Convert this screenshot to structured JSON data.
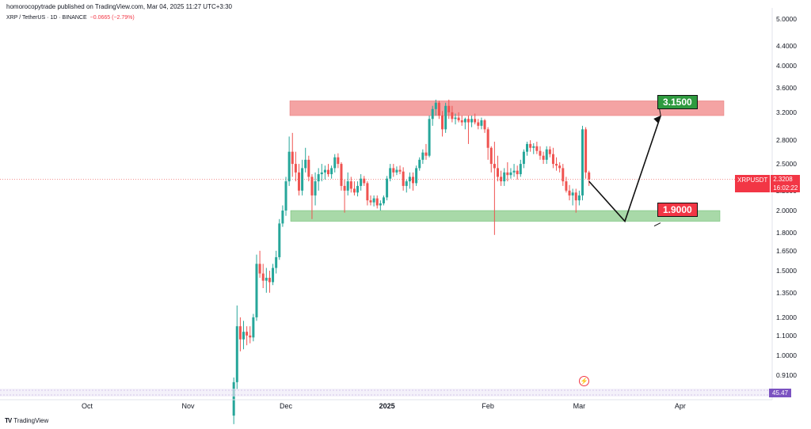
{
  "header": {
    "publisher_line": "homorocopytrade published on TradingView.com, Mar 04, 2025 11:27 UTC+3:30",
    "symbol_line": "XRP / TetherUS · 1D · BINANCE",
    "change": "−0.0665 (−2.79%)"
  },
  "price_tag": {
    "symbol": "XRPUSDT",
    "price": "2.3208",
    "countdown": "16:02:22"
  },
  "targets": {
    "high": "3.1500",
    "low": "1.9000"
  },
  "volume_value": "45.47",
  "branding": "TradingView",
  "icons": {
    "brand": "tradingview-logo-icon",
    "event": "lightning-icon"
  },
  "colors": {
    "up": "#26a69a",
    "down": "#ef5350",
    "resistance": "#f4a3a3",
    "support": "#a8d9a8"
  },
  "chart_data": {
    "type": "candlestick",
    "scale": "log",
    "y_ticks": [
      "5.0000",
      "4.4000",
      "4.0000",
      "3.6000",
      "3.2000",
      "2.8000",
      "2.5000",
      "2.2000",
      "2.0000",
      "1.8000",
      "1.6500",
      "1.5000",
      "1.3500",
      "1.2000",
      "1.1000",
      "1.0000",
      "0.9100"
    ],
    "x_ticks": [
      {
        "label": "Oct",
        "date": "2024-10-01"
      },
      {
        "label": "Nov",
        "date": "2024-11-01"
      },
      {
        "label": "Dec",
        "date": "2024-12-01"
      },
      {
        "label": "2025",
        "date": "2025-01-01"
      },
      {
        "label": "Feb",
        "date": "2025-02-01"
      },
      {
        "label": "Mar",
        "date": "2025-03-01"
      },
      {
        "label": "Apr",
        "date": "2025-04-01"
      }
    ],
    "resistance_zone": [
      3.15,
      3.38
    ],
    "support_zone": [
      1.9,
      2.0
    ],
    "projection": [
      {
        "date": "2025-03-04",
        "price": 2.3
      },
      {
        "date": "2025-03-15",
        "price": 1.9
      },
      {
        "date": "2025-03-26",
        "price": 3.15
      }
    ],
    "candles": [
      [
        "2024-11-15",
        0.75,
        0.9,
        0.72,
        0.88
      ],
      [
        "2024-11-16",
        0.88,
        1.27,
        0.85,
        1.15
      ],
      [
        "2024-11-17",
        1.15,
        1.2,
        1.02,
        1.08
      ],
      [
        "2024-11-18",
        1.08,
        1.18,
        1.03,
        1.12
      ],
      [
        "2024-11-19",
        1.12,
        1.15,
        1.05,
        1.1
      ],
      [
        "2024-11-20",
        1.1,
        1.15,
        1.06,
        1.09
      ],
      [
        "2024-11-21",
        1.09,
        1.22,
        1.07,
        1.2
      ],
      [
        "2024-11-22",
        1.2,
        1.62,
        1.18,
        1.55
      ],
      [
        "2024-11-23",
        1.55,
        1.65,
        1.45,
        1.48
      ],
      [
        "2024-11-24",
        1.48,
        1.55,
        1.38,
        1.43
      ],
      [
        "2024-11-25",
        1.43,
        1.52,
        1.35,
        1.45
      ],
      [
        "2024-11-26",
        1.45,
        1.5,
        1.35,
        1.42
      ],
      [
        "2024-11-27",
        1.42,
        1.55,
        1.4,
        1.52
      ],
      [
        "2024-11-28",
        1.52,
        1.65,
        1.48,
        1.6
      ],
      [
        "2024-11-29",
        1.6,
        1.92,
        1.58,
        1.88
      ],
      [
        "2024-11-30",
        1.88,
        2.05,
        1.85,
        2.0
      ],
      [
        "2024-12-01",
        2.0,
        2.35,
        1.95,
        2.3
      ],
      [
        "2024-12-02",
        2.3,
        2.85,
        2.25,
        2.65
      ],
      [
        "2024-12-03",
        2.65,
        2.9,
        2.35,
        2.5
      ],
      [
        "2024-12-04",
        2.5,
        2.65,
        2.3,
        2.4
      ],
      [
        "2024-12-05",
        2.4,
        2.5,
        2.15,
        2.2
      ],
      [
        "2024-12-06",
        2.2,
        2.55,
        2.15,
        2.45
      ],
      [
        "2024-12-07",
        2.45,
        2.7,
        2.4,
        2.55
      ],
      [
        "2024-12-08",
        2.55,
        2.6,
        2.3,
        2.35
      ],
      [
        "2024-12-09",
        2.35,
        2.38,
        1.92,
        2.15
      ],
      [
        "2024-12-10",
        2.15,
        2.4,
        2.05,
        2.3
      ],
      [
        "2024-12-11",
        2.3,
        2.45,
        2.2,
        2.38
      ],
      [
        "2024-12-12",
        2.38,
        2.5,
        2.3,
        2.4
      ],
      [
        "2024-12-13",
        2.4,
        2.48,
        2.32,
        2.43
      ],
      [
        "2024-12-14",
        2.43,
        2.5,
        2.35,
        2.38
      ],
      [
        "2024-12-15",
        2.38,
        2.48,
        2.33,
        2.45
      ],
      [
        "2024-12-16",
        2.45,
        2.62,
        2.4,
        2.58
      ],
      [
        "2024-12-17",
        2.58,
        2.63,
        2.45,
        2.5
      ],
      [
        "2024-12-18",
        2.5,
        2.52,
        2.2,
        2.25
      ],
      [
        "2024-12-19",
        2.25,
        2.32,
        1.98,
        2.2
      ],
      [
        "2024-12-20",
        2.2,
        2.4,
        2.15,
        2.3
      ],
      [
        "2024-12-21",
        2.3,
        2.35,
        2.18,
        2.22
      ],
      [
        "2024-12-22",
        2.22,
        2.3,
        2.15,
        2.18
      ],
      [
        "2024-12-23",
        2.18,
        2.3,
        2.14,
        2.25
      ],
      [
        "2024-12-24",
        2.25,
        2.38,
        2.2,
        2.33
      ],
      [
        "2024-12-25",
        2.33,
        2.36,
        2.25,
        2.28
      ],
      [
        "2024-12-26",
        2.28,
        2.3,
        2.05,
        2.1
      ],
      [
        "2024-12-27",
        2.1,
        2.15,
        2.05,
        2.08
      ],
      [
        "2024-12-28",
        2.08,
        2.15,
        2.04,
        2.12
      ],
      [
        "2024-12-29",
        2.12,
        2.15,
        2.02,
        2.05
      ],
      [
        "2024-12-30",
        2.05,
        2.1,
        2.0,
        2.07
      ],
      [
        "2024-12-31",
        2.07,
        2.15,
        2.05,
        2.13
      ],
      [
        "2025-01-01",
        2.13,
        2.36,
        2.1,
        2.33
      ],
      [
        "2025-01-02",
        2.33,
        2.5,
        2.3,
        2.45
      ],
      [
        "2025-01-03",
        2.45,
        2.5,
        2.35,
        2.4
      ],
      [
        "2025-01-04",
        2.4,
        2.47,
        2.37,
        2.43
      ],
      [
        "2025-01-05",
        2.43,
        2.48,
        2.38,
        2.41
      ],
      [
        "2025-01-06",
        2.41,
        2.46,
        2.2,
        2.25
      ],
      [
        "2025-01-07",
        2.25,
        2.32,
        2.18,
        2.3
      ],
      [
        "2025-01-08",
        2.3,
        2.4,
        2.22,
        2.35
      ],
      [
        "2025-01-09",
        2.35,
        2.4,
        2.2,
        2.28
      ],
      [
        "2025-01-10",
        2.28,
        2.48,
        2.25,
        2.45
      ],
      [
        "2025-01-11",
        2.45,
        2.58,
        2.42,
        2.55
      ],
      [
        "2025-01-12",
        2.55,
        2.68,
        2.5,
        2.64
      ],
      [
        "2025-01-13",
        2.64,
        2.75,
        2.55,
        2.6
      ],
      [
        "2025-01-14",
        2.6,
        3.15,
        2.58,
        3.1
      ],
      [
        "2025-01-15",
        3.1,
        3.3,
        3.0,
        3.25
      ],
      [
        "2025-01-16",
        3.25,
        3.4,
        3.15,
        3.35
      ],
      [
        "2025-01-17",
        3.35,
        3.38,
        3.1,
        3.15
      ],
      [
        "2025-01-18",
        3.15,
        3.22,
        2.85,
        2.95
      ],
      [
        "2025-01-19",
        2.95,
        3.35,
        2.9,
        3.3
      ],
      [
        "2025-01-20",
        3.3,
        3.4,
        3.1,
        3.2
      ],
      [
        "2025-01-21",
        3.2,
        3.3,
        3.05,
        3.1
      ],
      [
        "2025-01-22",
        3.1,
        3.18,
        3.02,
        3.12
      ],
      [
        "2025-01-23",
        3.12,
        3.2,
        3.05,
        3.08
      ],
      [
        "2025-01-24",
        3.08,
        3.15,
        3.0,
        3.05
      ],
      [
        "2025-01-25",
        3.05,
        3.12,
        2.95,
        3.1
      ],
      [
        "2025-01-26",
        3.1,
        3.15,
        2.75,
        3.05
      ],
      [
        "2025-01-27",
        3.05,
        3.15,
        2.98,
        3.1
      ],
      [
        "2025-01-28",
        3.1,
        3.18,
        3.02,
        3.05
      ],
      [
        "2025-01-29",
        3.05,
        3.1,
        2.95,
        3.0
      ],
      [
        "2025-01-30",
        3.0,
        3.12,
        2.95,
        3.08
      ],
      [
        "2025-01-31",
        3.08,
        3.1,
        2.9,
        2.95
      ],
      [
        "2025-02-01",
        2.95,
        2.98,
        2.55,
        2.7
      ],
      [
        "2025-02-02",
        2.7,
        2.72,
        2.4,
        2.5
      ],
      [
        "2025-02-03",
        2.5,
        2.78,
        1.78,
        2.45
      ],
      [
        "2025-02-04",
        2.45,
        2.6,
        2.3,
        2.35
      ],
      [
        "2025-02-05",
        2.35,
        2.42,
        2.25,
        2.3
      ],
      [
        "2025-02-06",
        2.3,
        2.45,
        2.25,
        2.4
      ],
      [
        "2025-02-07",
        2.4,
        2.52,
        2.3,
        2.37
      ],
      [
        "2025-02-08",
        2.37,
        2.45,
        2.33,
        2.4
      ],
      [
        "2025-02-09",
        2.4,
        2.5,
        2.35,
        2.42
      ],
      [
        "2025-02-10",
        2.42,
        2.48,
        2.32,
        2.38
      ],
      [
        "2025-02-11",
        2.38,
        2.55,
        2.35,
        2.5
      ],
      [
        "2025-02-12",
        2.5,
        2.68,
        2.45,
        2.65
      ],
      [
        "2025-02-13",
        2.65,
        2.78,
        2.6,
        2.75
      ],
      [
        "2025-02-14",
        2.75,
        2.8,
        2.65,
        2.7
      ],
      [
        "2025-02-15",
        2.7,
        2.76,
        2.62,
        2.72
      ],
      [
        "2025-02-16",
        2.72,
        2.78,
        2.62,
        2.66
      ],
      [
        "2025-02-17",
        2.66,
        2.72,
        2.55,
        2.6
      ],
      [
        "2025-02-18",
        2.6,
        2.65,
        2.5,
        2.55
      ],
      [
        "2025-02-19",
        2.55,
        2.72,
        2.5,
        2.68
      ],
      [
        "2025-02-20",
        2.68,
        2.72,
        2.58,
        2.62
      ],
      [
        "2025-02-21",
        2.62,
        2.7,
        2.45,
        2.5
      ],
      [
        "2025-02-22",
        2.5,
        2.58,
        2.42,
        2.48
      ],
      [
        "2025-02-23",
        2.48,
        2.52,
        2.4,
        2.45
      ],
      [
        "2025-02-24",
        2.45,
        2.5,
        2.25,
        2.3
      ],
      [
        "2025-02-25",
        2.3,
        2.35,
        2.18,
        2.2
      ],
      [
        "2025-02-26",
        2.2,
        2.26,
        2.1,
        2.15
      ],
      [
        "2025-02-27",
        2.15,
        2.22,
        2.05,
        2.18
      ],
      [
        "2025-02-28",
        2.18,
        2.22,
        1.98,
        2.1
      ],
      [
        "2025-03-01",
        2.1,
        2.2,
        2.05,
        2.15
      ],
      [
        "2025-03-02",
        2.15,
        3.0,
        2.1,
        2.95
      ],
      [
        "2025-03-03",
        2.95,
        2.98,
        2.33,
        2.4
      ],
      [
        "2025-03-04",
        2.4,
        2.42,
        2.25,
        2.32
      ]
    ]
  }
}
